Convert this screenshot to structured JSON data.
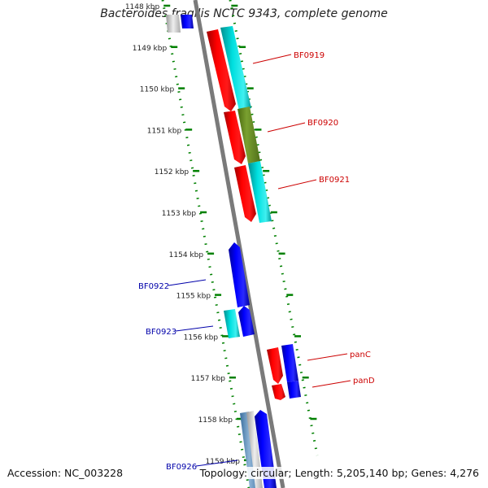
{
  "title": "Bacteroides fragilis NCTC 9343, complete genome",
  "footer": {
    "accession": "Accession: NC_003228",
    "topology": "Topology: circular; Length: 5,205,140 bp; Genes: 4,276"
  },
  "colors": {
    "forward_gene": "#ff0000",
    "reverse_gene": "#0000ff",
    "cyan_feature": "#00c8c8",
    "olive_feature": "#6b8e23",
    "backbone": "#808080",
    "ruler": "#008000",
    "forward_label": "#cc0000",
    "reverse_label": "#0000aa"
  },
  "ruler": {
    "unit": "kbp",
    "ticks": [
      "1148 kbp",
      "1149 kbp",
      "1150 kbp",
      "1151 kbp",
      "1152 kbp",
      "1153 kbp",
      "1154 kbp",
      "1155 kbp",
      "1156 kbp",
      "1157 kbp",
      "1158 kbp",
      "1159 kbp"
    ]
  },
  "gene_labels": {
    "forward": [
      "BF0919",
      "BF0920",
      "BF0921",
      "panC",
      "panD"
    ],
    "reverse": [
      "BF0922",
      "BF0923",
      "BF0926"
    ]
  }
}
